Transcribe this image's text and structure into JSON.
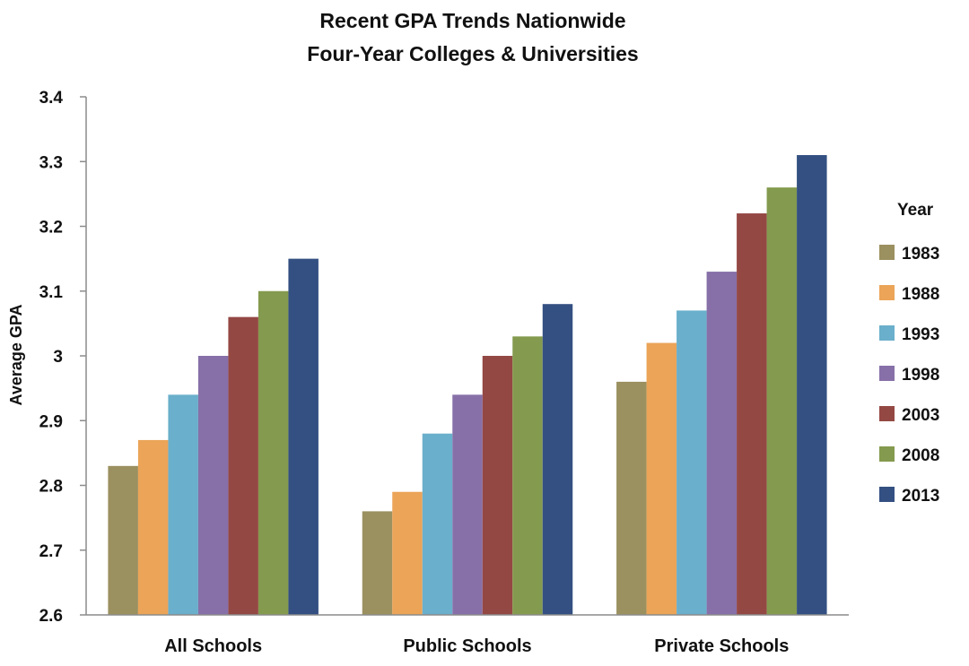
{
  "chart_data": {
    "type": "bar",
    "title": "Recent GPA Trends Nationwide",
    "subtitle": "Four-Year Colleges & Universities",
    "xlabel": "",
    "ylabel": "Average GPA",
    "ylim": [
      2.6,
      3.4
    ],
    "yticks": [
      2.6,
      2.7,
      2.8,
      2.9,
      3,
      3.1,
      3.2,
      3.3,
      3.4
    ],
    "ytick_labels": [
      "2.6",
      "2.7",
      "2.8",
      "2.9",
      "3",
      "3.1",
      "3.2",
      "3.3",
      "3.4"
    ],
    "grid": false,
    "legend_title": "Year",
    "legend_position": "right",
    "categories": [
      "All Schools",
      "Public Schools",
      "Private Schools"
    ],
    "series": [
      {
        "name": "1983",
        "color": "#9B9060",
        "values": [
          2.83,
          2.76,
          2.96
        ]
      },
      {
        "name": "1988",
        "color": "#EBA458",
        "values": [
          2.87,
          2.79,
          3.02
        ]
      },
      {
        "name": "1993",
        "color": "#6AAFCB",
        "values": [
          2.94,
          2.88,
          3.07
        ]
      },
      {
        "name": "1998",
        "color": "#8770A8",
        "values": [
          3.0,
          2.94,
          3.13
        ]
      },
      {
        "name": "2003",
        "color": "#944844",
        "values": [
          3.06,
          3.0,
          3.22
        ]
      },
      {
        "name": "2008",
        "color": "#849A4E",
        "values": [
          3.1,
          3.03,
          3.26
        ]
      },
      {
        "name": "2013",
        "color": "#345082",
        "values": [
          3.15,
          3.08,
          3.31
        ]
      }
    ]
  }
}
